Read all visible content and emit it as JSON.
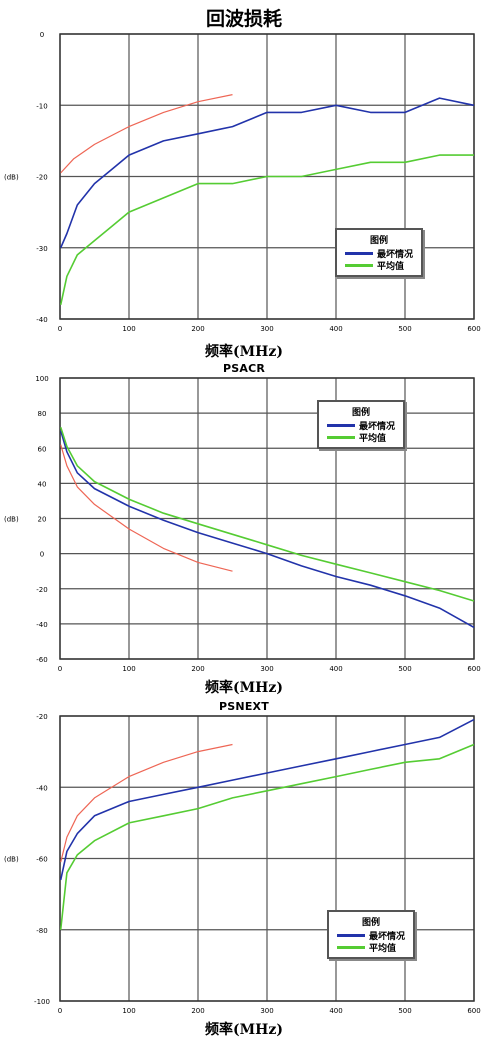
{
  "charts": [
    {
      "title": "回波损耗",
      "xlabel": "频率(MHz)",
      "ylabel": "(dB)"
    },
    {
      "title": "PSACR",
      "xlabel": "频率(MHz)",
      "ylabel": "(dB)"
    },
    {
      "title": "PSNEXT",
      "xlabel": "频率(MHz)",
      "ylabel": "(dB)"
    }
  ],
  "legend": {
    "title": "图例",
    "worst": "最坏情况",
    "avg": "平均值"
  },
  "colors": {
    "worst": "#2233aa",
    "avg": "#55cc33",
    "limit": "#ee6655",
    "grid": "#555555"
  },
  "chart_data": [
    {
      "type": "line",
      "title": "回波损耗",
      "xlabel": "频率(MHz)",
      "ylabel": "(dB)",
      "xlim": [
        0,
        600
      ],
      "ylim": [
        -40,
        0
      ],
      "xticks": [
        0,
        100,
        200,
        300,
        400,
        500,
        600
      ],
      "yticks": [
        0,
        -10,
        -20,
        -30,
        -40
      ],
      "grid": true,
      "legend_position": "lower-right",
      "series": [
        {
          "name": "最坏情况",
          "x": [
            1,
            10,
            25,
            50,
            75,
            100,
            150,
            200,
            250,
            300,
            350,
            400,
            450,
            500,
            550,
            600
          ],
          "values": [
            -30,
            -28,
            -24,
            -21,
            -19,
            -17,
            -15,
            -14,
            -13,
            -11,
            -11,
            -10,
            -11,
            -11,
            -9,
            -10
          ]
        },
        {
          "name": "平均值",
          "x": [
            1,
            10,
            25,
            50,
            75,
            100,
            150,
            200,
            250,
            300,
            350,
            400,
            450,
            500,
            550,
            600
          ],
          "values": [
            -38,
            -34,
            -31,
            -29,
            -27,
            -25,
            -23,
            -21,
            -21,
            -20,
            -20,
            -19,
            -18,
            -18,
            -17,
            -17
          ]
        },
        {
          "name": "",
          "x": [
            1,
            20,
            50,
            100,
            150,
            200,
            250
          ],
          "values": [
            -19.5,
            -17.5,
            -15.5,
            -13,
            -11,
            -9.5,
            -8.5
          ]
        }
      ]
    },
    {
      "type": "line",
      "title": "PSACR",
      "xlabel": "频率(MHz)",
      "ylabel": "(dB)",
      "xlim": [
        0,
        600
      ],
      "ylim": [
        -60,
        100
      ],
      "xticks": [
        0,
        100,
        200,
        300,
        400,
        500,
        600
      ],
      "yticks": [
        100,
        80,
        60,
        40,
        20,
        0,
        -20,
        -40,
        -60
      ],
      "grid": true,
      "legend_position": "top-right",
      "series": [
        {
          "name": "最坏情况",
          "x": [
            1,
            10,
            25,
            50,
            100,
            150,
            200,
            250,
            300,
            350,
            400,
            450,
            500,
            550,
            600
          ],
          "values": [
            70,
            58,
            46,
            37,
            27,
            19,
            12,
            6,
            0,
            -7,
            -13,
            -18,
            -24,
            -31,
            -42
          ]
        },
        {
          "name": "平均值",
          "x": [
            1,
            10,
            25,
            50,
            100,
            150,
            200,
            250,
            300,
            350,
            400,
            450,
            500,
            550,
            600
          ],
          "values": [
            72,
            61,
            50,
            41,
            31,
            23,
            17,
            11,
            5,
            -1,
            -6,
            -11,
            -16,
            -21,
            -27
          ]
        },
        {
          "name": "",
          "x": [
            1,
            10,
            25,
            50,
            100,
            150,
            200,
            250
          ],
          "values": [
            62,
            50,
            38,
            28,
            14,
            3,
            -5,
            -10
          ]
        }
      ]
    },
    {
      "type": "line",
      "title": "PSNEXT",
      "xlabel": "频率(MHz)",
      "ylabel": "(dB)",
      "xlim": [
        0,
        600
      ],
      "ylim": [
        -100,
        -20
      ],
      "xticks": [
        0,
        100,
        200,
        300,
        400,
        500,
        600
      ],
      "yticks": [
        -20,
        -40,
        -60,
        -80,
        -100
      ],
      "grid": true,
      "legend_position": "lower-right",
      "series": [
        {
          "name": "最坏情况",
          "x": [
            1,
            10,
            25,
            50,
            100,
            150,
            200,
            250,
            300,
            350,
            400,
            450,
            500,
            550,
            600
          ],
          "values": [
            -66,
            -58,
            -53,
            -48,
            -44,
            -42,
            -40,
            -38,
            -36,
            -34,
            -32,
            -30,
            -28,
            -26,
            -21
          ]
        },
        {
          "name": "平均值",
          "x": [
            1,
            10,
            25,
            50,
            100,
            150,
            200,
            250,
            300,
            350,
            400,
            450,
            500,
            550,
            600
          ],
          "values": [
            -80,
            -64,
            -59,
            -55,
            -50,
            -48,
            -46,
            -43,
            -41,
            -39,
            -37,
            -35,
            -33,
            -32,
            -28
          ]
        },
        {
          "name": "",
          "x": [
            1,
            10,
            25,
            50,
            100,
            150,
            200,
            250
          ],
          "values": [
            -61,
            -54,
            -48,
            -43,
            -37,
            -33,
            -30,
            -28
          ]
        }
      ]
    }
  ]
}
